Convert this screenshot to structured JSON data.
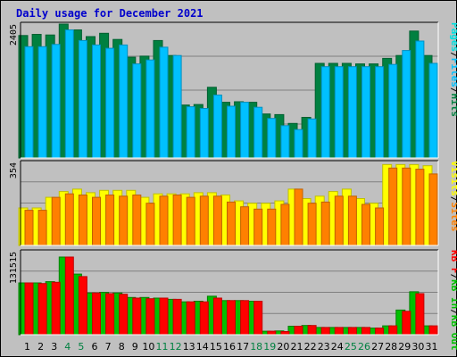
{
  "chart_data": {
    "type": "bar",
    "title": "Daily usage for December 2021",
    "categories": [
      "1",
      "2",
      "3",
      "4",
      "5",
      "6",
      "7",
      "8",
      "9",
      "10",
      "11",
      "12",
      "13",
      "14",
      "15",
      "16",
      "17",
      "18",
      "19",
      "20",
      "21",
      "22",
      "23",
      "24",
      "25",
      "26",
      "27",
      "28",
      "29",
      "30",
      "31"
    ],
    "weekend_days": [
      "4",
      "5",
      "11",
      "12",
      "18",
      "19",
      "25",
      "26"
    ],
    "colors": {
      "hits": "#008040",
      "files": "#00c0ff",
      "pages": "#00e0e0",
      "visits": "#ffff00",
      "sites": "#ff8000",
      "kb_in": "#00c000",
      "kb_out": "#ff0000",
      "weekday_label": "#000000",
      "weekend_label": "#008040",
      "title": "#0000cc"
    },
    "panels": [
      {
        "id": "hits",
        "ymax_label": "2405",
        "ymax": 2405,
        "label_parts": [
          {
            "text": "Pages",
            "color": "#00e0e0"
          },
          {
            "text": "/",
            "color": "#000000"
          },
          {
            "text": "Files",
            "color": "#00c0ff"
          },
          {
            "text": "/",
            "color": "#000000"
          },
          {
            "text": "Hits",
            "color": "#008040"
          }
        ],
        "series": [
          {
            "name": "Hits",
            "color": "#008040",
            "values": [
              2200,
              2220,
              2210,
              2405,
              2300,
              2180,
              2240,
              2130,
              1810,
              1830,
              2110,
              1840,
              950,
              960,
              1270,
              1000,
              1010,
              1000,
              790,
              780,
              620,
              730,
              1700,
              1700,
              1700,
              1690,
              1690,
              1790,
              1840,
              2280,
              1840
            ]
          },
          {
            "name": "Files",
            "color": "#00c0ff",
            "values": [
              2000,
              2000,
              2040,
              2300,
              2110,
              2030,
              1970,
              2030,
              1690,
              1760,
              1990,
              1840,
              920,
              890,
              1130,
              930,
              1000,
              910,
              710,
              580,
              510,
              700,
              1640,
              1640,
              1640,
              1640,
              1640,
              1680,
              1930,
              2100,
              1700
            ]
          }
        ]
      },
      {
        "id": "visits",
        "ymax_label": "354",
        "ymax": 354,
        "label_parts": [
          {
            "text": "Visits",
            "color": "#ffff00"
          },
          {
            "text": "/",
            "color": "#000000"
          },
          {
            "text": "Sites",
            "color": "#ff8000"
          }
        ],
        "series": [
          {
            "name": "Visits",
            "color": "#ffff00",
            "values": [
              160,
              160,
              205,
              230,
              240,
              225,
              235,
              235,
              235,
              205,
              220,
              220,
              220,
              225,
              225,
              215,
              190,
              180,
              180,
              190,
              240,
              200,
              210,
              230,
              240,
              200,
              180,
              345,
              345,
              345,
              340
            ]
          },
          {
            "name": "Sites",
            "color": "#ff8000",
            "values": [
              150,
              150,
              205,
              220,
              215,
              205,
              215,
              210,
              215,
              180,
              210,
              215,
              205,
              210,
              210,
              185,
              165,
              155,
              155,
              175,
              240,
              180,
              185,
              210,
              210,
              175,
              160,
              330,
              330,
              325,
              305
            ]
          }
        ]
      },
      {
        "id": "kbytes",
        "ymax_label": "131515",
        "ymax": 131515,
        "label_parts": [
          {
            "text": "KB F",
            "color": "#ff0000"
          },
          {
            "text": "/",
            "color": "#000000"
          },
          {
            "text": "KB In",
            "color": "#00c000"
          },
          {
            "text": "/",
            "color": "#000000"
          },
          {
            "text": "KB Out",
            "color": "#00c000"
          }
        ],
        "series": [
          {
            "name": "KB In",
            "color": "#00c000",
            "values": [
              82000,
              82000,
              84000,
              123000,
              96000,
              66000,
              67000,
              66000,
              59000,
              59000,
              58000,
              56000,
              52000,
              53000,
              61000,
              54000,
              54000,
              53000,
              5500,
              6000,
              13500,
              14500,
              11500,
              11500,
              11500,
              11500,
              10500,
              14000,
              39000,
              68000,
              14000
            ]
          },
          {
            "name": "KB Out",
            "color": "#ff0000",
            "values": [
              82000,
              81000,
              83000,
              123000,
              92000,
              66000,
              65000,
              64000,
              58000,
              57000,
              58000,
              56000,
              52000,
              52000,
              58000,
              54000,
              54000,
              53000,
              5500,
              5000,
              13500,
              14500,
              11500,
              11500,
              11500,
              11500,
              10500,
              14000,
              37000,
              65000,
              14000
            ]
          }
        ]
      }
    ]
  }
}
